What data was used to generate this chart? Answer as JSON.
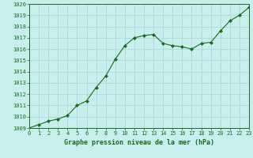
{
  "x": [
    0,
    1,
    2,
    3,
    4,
    5,
    6,
    7,
    8,
    9,
    10,
    11,
    12,
    13,
    14,
    15,
    16,
    17,
    18,
    19,
    20,
    21,
    22,
    23
  ],
  "y": [
    1009.0,
    1009.3,
    1009.6,
    1009.8,
    1010.1,
    1011.0,
    1011.4,
    1012.6,
    1013.6,
    1015.1,
    1016.3,
    1017.0,
    1017.2,
    1017.3,
    1016.5,
    1016.3,
    1016.2,
    1016.0,
    1016.5,
    1016.6,
    1017.6,
    1018.5,
    1019.0,
    1019.7
  ],
  "line_color": "#1a6b1a",
  "marker": "D",
  "marker_size": 2.2,
  "bg_color": "#c8eeee",
  "grid_color": "#aad4d4",
  "xlabel": "Graphe pression niveau de la mer (hPa)",
  "xlabel_color": "#1a6b1a",
  "tick_color": "#1a6b1a",
  "ylim": [
    1009,
    1020
  ],
  "xlim": [
    0,
    23
  ],
  "yticks": [
    1009,
    1010,
    1011,
    1012,
    1013,
    1014,
    1015,
    1016,
    1017,
    1018,
    1019,
    1020
  ],
  "xticks": [
    0,
    1,
    2,
    3,
    4,
    5,
    6,
    7,
    8,
    9,
    10,
    11,
    12,
    13,
    14,
    15,
    16,
    17,
    18,
    19,
    20,
    21,
    22,
    23
  ],
  "tick_fontsize": 5.0,
  "xlabel_fontsize": 6.0,
  "linewidth": 0.8
}
